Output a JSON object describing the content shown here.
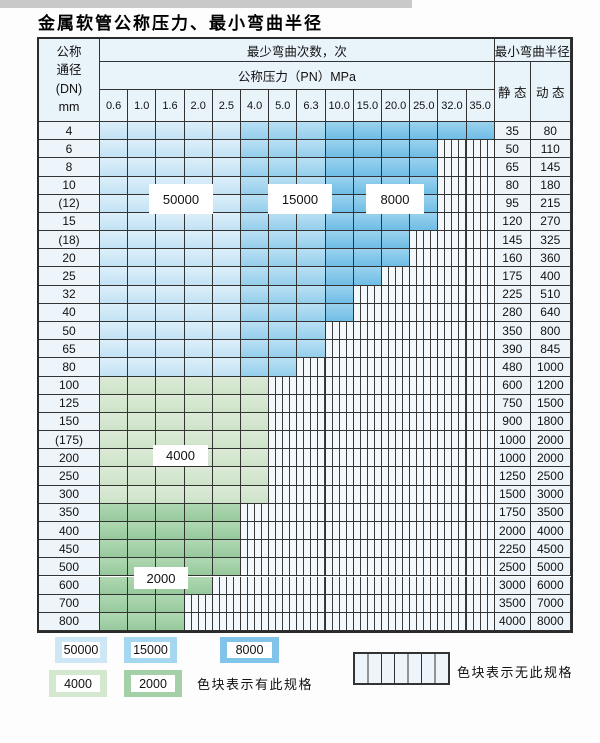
{
  "title": "金属软管公称压力、最小弯曲半径",
  "table": {
    "header": {
      "dn_lines": [
        "公称",
        "通径",
        "(DN)",
        "mm"
      ],
      "bend_cycles": "最少弯曲次数，次",
      "min_bend_radius": "最小弯曲半径",
      "pressure": "公称压力（PN）MPa",
      "static_label": "静 态",
      "dynamic_label": "动 态",
      "pressures": [
        "0.6",
        "1.0",
        "1.6",
        "2.0",
        "2.5",
        "4.0",
        "5.0",
        "6.3",
        "10.0",
        "15.0",
        "20.0",
        "25.0",
        "32.0",
        "35.0"
      ]
    },
    "rows": [
      {
        "dn": "4",
        "static": "35",
        "dynamic": "80",
        "colored": 14,
        "green": null
      },
      {
        "dn": "6",
        "static": "50",
        "dynamic": "110",
        "colored": 12,
        "green": null
      },
      {
        "dn": "8",
        "static": "65",
        "dynamic": "145",
        "colored": 12,
        "green": null
      },
      {
        "dn": "10",
        "static": "80",
        "dynamic": "180",
        "colored": 12,
        "green": null
      },
      {
        "dn": "(12)",
        "static": "95",
        "dynamic": "215",
        "colored": 12,
        "green": null
      },
      {
        "dn": "15",
        "static": "120",
        "dynamic": "270",
        "colored": 12,
        "green": null
      },
      {
        "dn": "(18)",
        "static": "145",
        "dynamic": "325",
        "colored": 11,
        "green": null
      },
      {
        "dn": "20",
        "static": "160",
        "dynamic": "360",
        "colored": 11,
        "green": null
      },
      {
        "dn": "25",
        "static": "175",
        "dynamic": "400",
        "colored": 10,
        "green": null
      },
      {
        "dn": "32",
        "static": "225",
        "dynamic": "510",
        "colored": 9,
        "green": null
      },
      {
        "dn": "40",
        "static": "280",
        "dynamic": "640",
        "colored": 9,
        "green": null
      },
      {
        "dn": "50",
        "static": "350",
        "dynamic": "800",
        "colored": 8,
        "green": null
      },
      {
        "dn": "65",
        "static": "390",
        "dynamic": "845",
        "colored": 8,
        "green": null
      },
      {
        "dn": "80",
        "static": "480",
        "dynamic": "1000",
        "colored": 7,
        "green": null
      },
      {
        "dn": "100",
        "static": "600",
        "dynamic": "1200",
        "colored": 6,
        "green": "light"
      },
      {
        "dn": "125",
        "static": "750",
        "dynamic": "1500",
        "colored": 6,
        "green": "light"
      },
      {
        "dn": "150",
        "static": "900",
        "dynamic": "1800",
        "colored": 6,
        "green": "light"
      },
      {
        "dn": "(175)",
        "static": "1000",
        "dynamic": "2000",
        "colored": 6,
        "green": "light"
      },
      {
        "dn": "200",
        "static": "1000",
        "dynamic": "2000",
        "colored": 6,
        "green": "light"
      },
      {
        "dn": "250",
        "static": "1250",
        "dynamic": "2500",
        "colored": 6,
        "green": "light"
      },
      {
        "dn": "300",
        "static": "1500",
        "dynamic": "3000",
        "colored": 6,
        "green": "light"
      },
      {
        "dn": "350",
        "static": "1750",
        "dynamic": "3500",
        "colored": 5,
        "green": "dark"
      },
      {
        "dn": "400",
        "static": "2000",
        "dynamic": "4000",
        "colored": 5,
        "green": "dark"
      },
      {
        "dn": "450",
        "static": "2250",
        "dynamic": "4500",
        "colored": 5,
        "green": "dark"
      },
      {
        "dn": "500",
        "static": "2500",
        "dynamic": "5000",
        "colored": 5,
        "green": "dark"
      },
      {
        "dn": "600",
        "static": "3000",
        "dynamic": "6000",
        "colored": 4,
        "green": "dark"
      },
      {
        "dn": "700",
        "static": "3500",
        "dynamic": "7000",
        "colored": 3,
        "green": "dark"
      },
      {
        "dn": "800",
        "static": "4000",
        "dynamic": "8000",
        "colored": 3,
        "green": "dark"
      }
    ]
  },
  "region_labels": [
    "50000",
    "15000",
    "8000",
    "4000",
    "2000"
  ],
  "legend": {
    "items": [
      {
        "label": "50000",
        "color_key": "blue_light"
      },
      {
        "label": "15000",
        "color_key": "blue_medium"
      },
      {
        "label": "8000",
        "color_key": "blue_dark"
      },
      {
        "label": "4000",
        "color_key": "green_light"
      },
      {
        "label": "2000",
        "color_key": "green_dark"
      }
    ],
    "has_spec_text": "色块表示有此规格",
    "no_spec_text": "色块表示无此规格"
  },
  "colors": {
    "blue_light": {
      "top": "#ddeffa",
      "bottom": "#c2e2f4",
      "base": "#cde7f7"
    },
    "blue_medium": {
      "top": "#b9e0f4",
      "bottom": "#95cfec",
      "base": "#a6d7f0"
    },
    "blue_dark": {
      "top": "#9ad2ee",
      "bottom": "#6fbde6",
      "base": "#80c5e9"
    },
    "green_light": {
      "top": "#dcead7",
      "bottom": "#cde3c8",
      "base": "#d4e7cf"
    },
    "green_dark": {
      "top": "#afd8b2",
      "bottom": "#97c99c",
      "base": "#a3d0a7"
    },
    "header_bg": "#e9f3fa",
    "hatch_bg": "#f2f8fc",
    "grid_line": "#333333"
  }
}
